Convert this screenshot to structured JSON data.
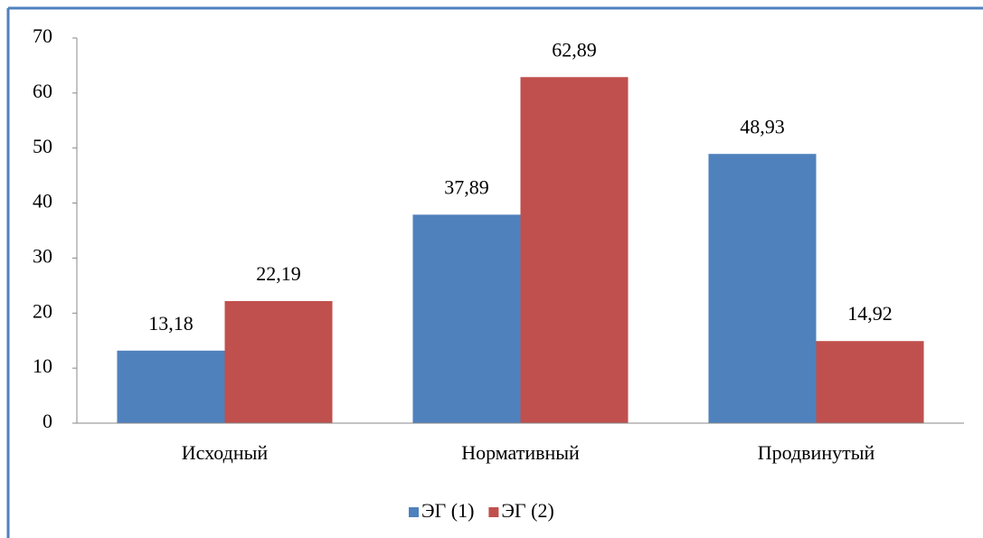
{
  "chart_data": {
    "type": "bar",
    "categories": [
      "Исходный",
      "Нормативный",
      "Продвинутый"
    ],
    "series": [
      {
        "name": "ЭГ (1)",
        "color": "#4f81bd",
        "values": [
          13.18,
          37.89,
          48.93
        ],
        "value_labels": [
          "13,18",
          "37,89",
          "48,93"
        ]
      },
      {
        "name": "ЭГ (2)",
        "color": "#c0504d",
        "values": [
          22.19,
          62.89,
          14.92
        ],
        "value_labels": [
          "22,19",
          "62,89",
          "14,92"
        ]
      }
    ],
    "ylim": [
      0,
      70
    ],
    "yticks": [
      0,
      10,
      20,
      30,
      40,
      50,
      60,
      70
    ],
    "grid": false,
    "legend": "bottom"
  }
}
